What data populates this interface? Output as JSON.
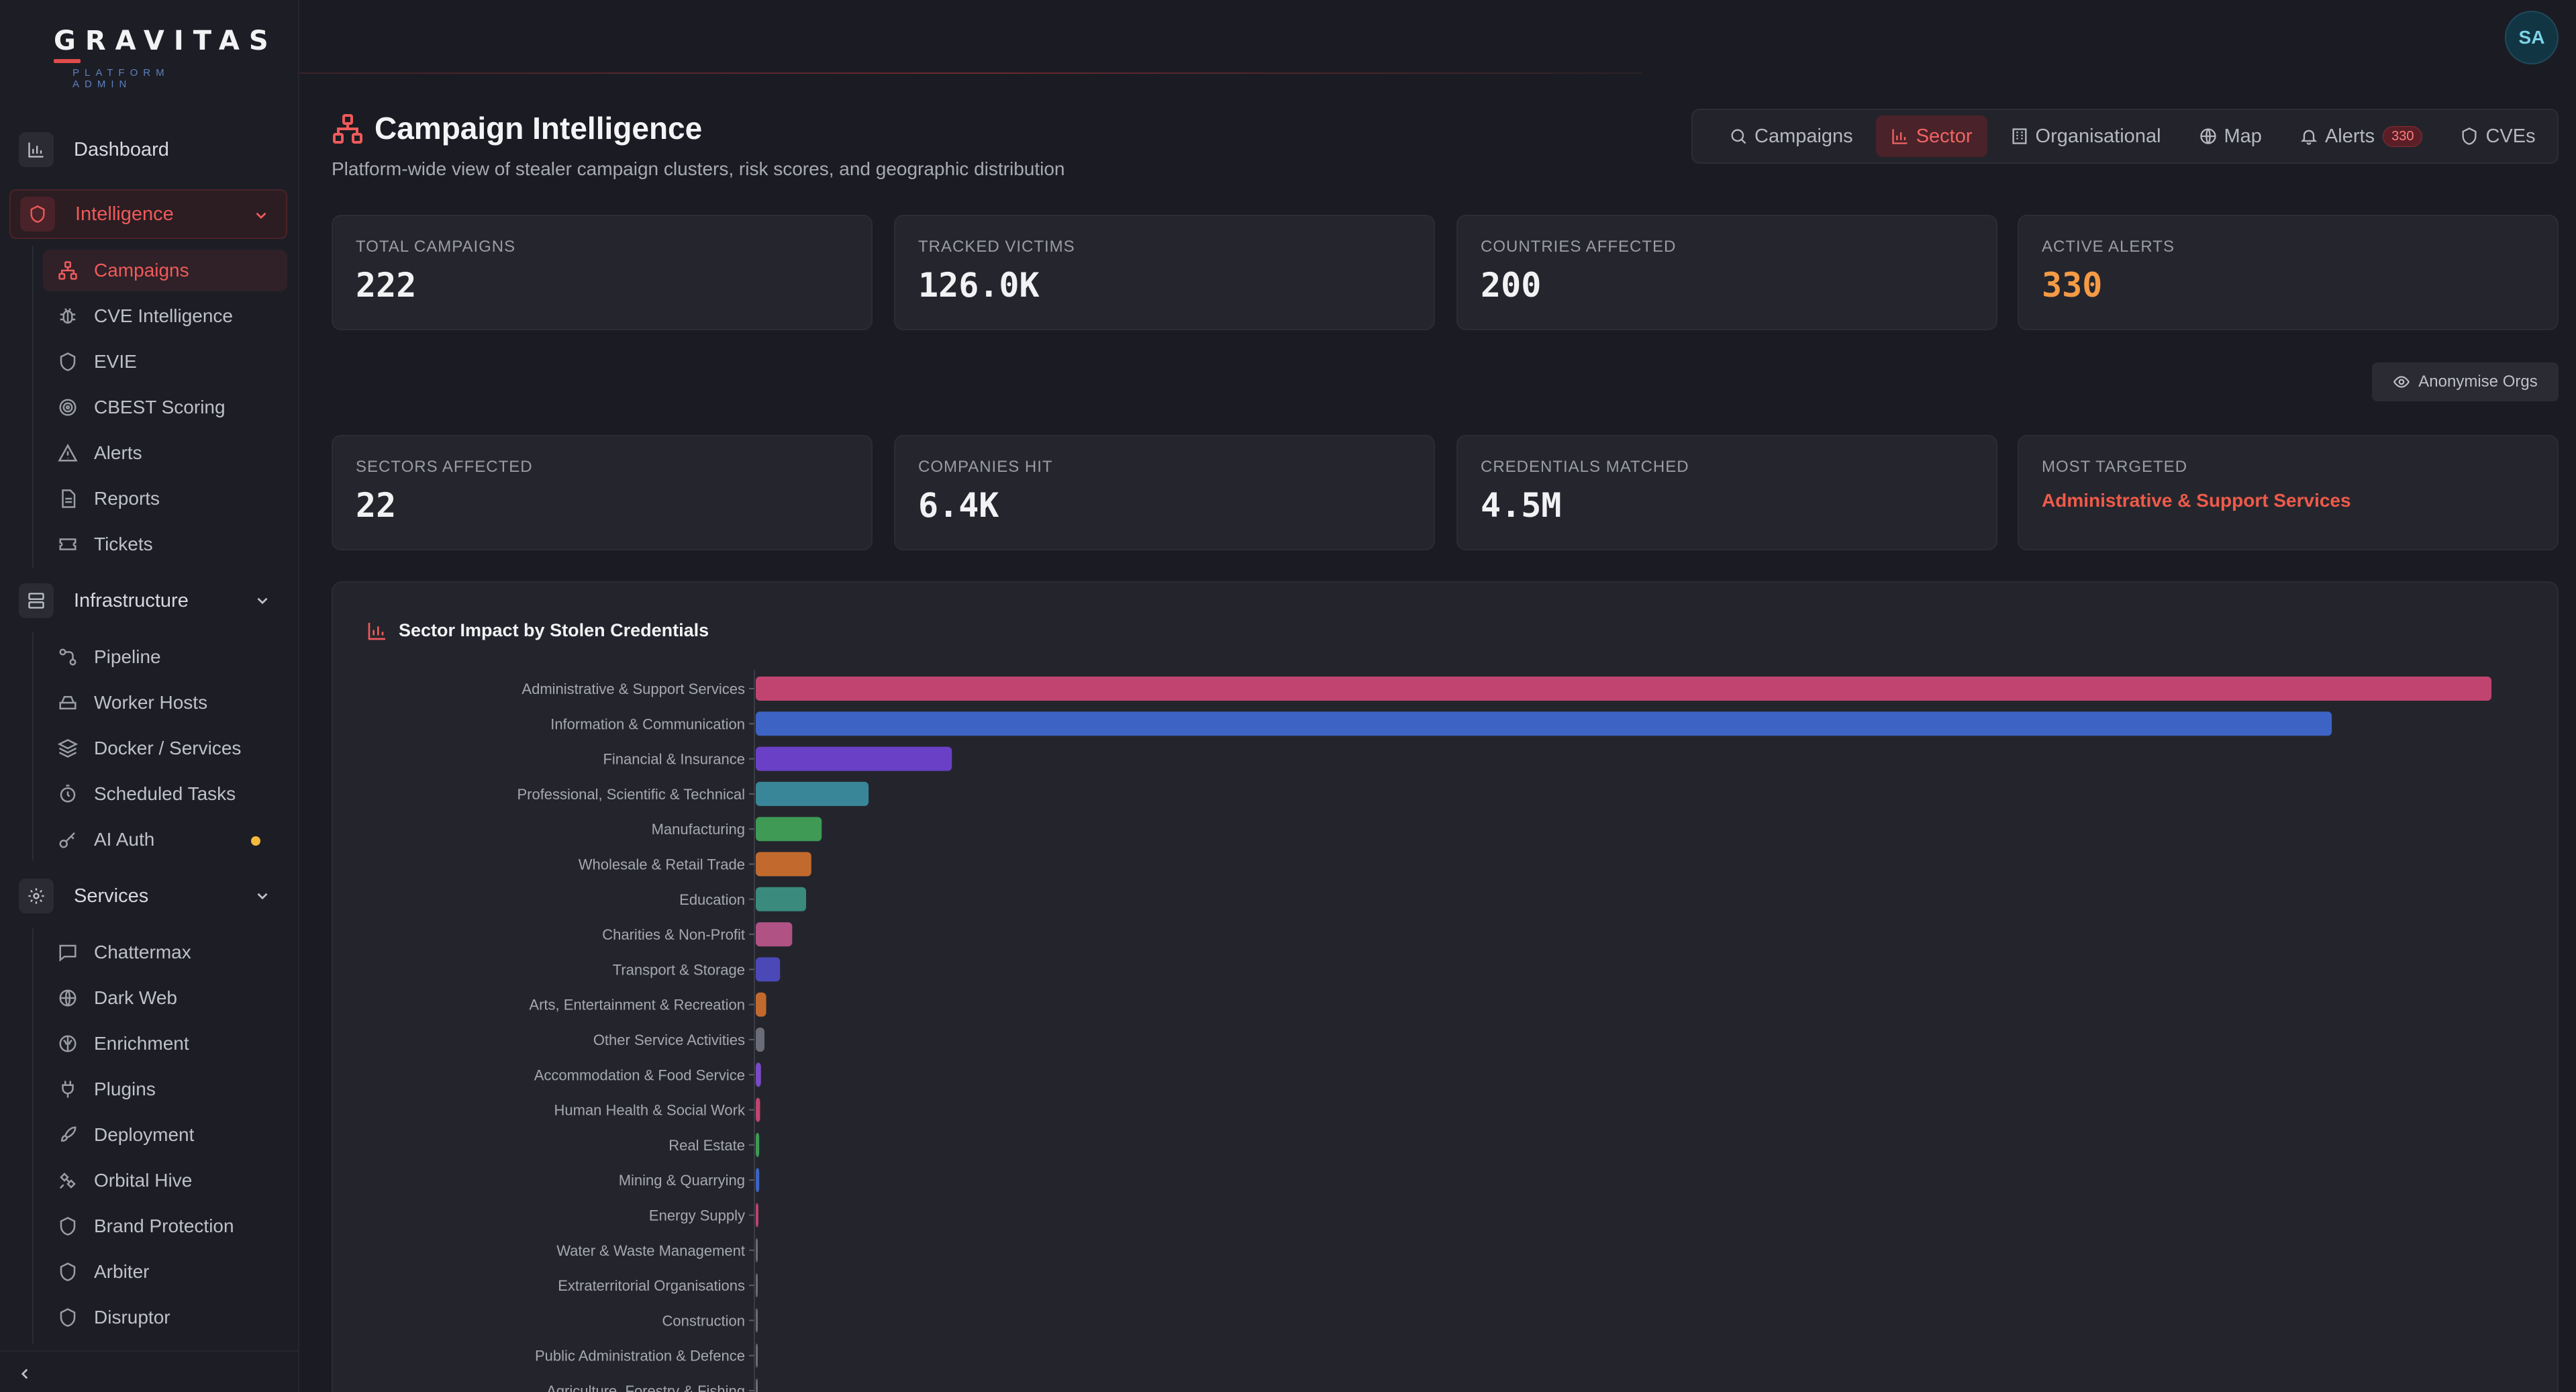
{
  "brand": {
    "name": "GRAVITAS",
    "subtitle": "PLATFORM ADMIN"
  },
  "user": {
    "initials": "SA"
  },
  "sidebar": {
    "dashboard": "Dashboard",
    "intelligence": {
      "label": "Intelligence",
      "items": [
        "Campaigns",
        "CVE Intelligence",
        "EVIE",
        "CBEST Scoring",
        "Alerts",
        "Reports",
        "Tickets"
      ]
    },
    "infrastructure": {
      "label": "Infrastructure",
      "items": [
        "Pipeline",
        "Worker Hosts",
        "Docker / Services",
        "Scheduled Tasks",
        "AI Auth"
      ]
    },
    "services": {
      "label": "Services",
      "items": [
        "Chattermax",
        "Dark Web",
        "Enrichment",
        "Plugins",
        "Deployment",
        "Orbital Hive",
        "Brand Protection",
        "Arbiter",
        "Disruptor"
      ]
    }
  },
  "header": {
    "title": "Campaign Intelligence",
    "subtitle": "Platform-wide view of stealer campaign clusters, risk scores, and geographic distribution"
  },
  "tabs": [
    {
      "label": "Campaigns",
      "icon": "search-icon"
    },
    {
      "label": "Sector",
      "icon": "bar-chart-icon"
    },
    {
      "label": "Organisational",
      "icon": "building-icon"
    },
    {
      "label": "Map",
      "icon": "globe-icon"
    },
    {
      "label": "Alerts",
      "icon": "bell-icon",
      "badge": "330"
    },
    {
      "label": "CVEs",
      "icon": "shield-icon"
    }
  ],
  "stats_row1": [
    {
      "label": "TOTAL CAMPAIGNS",
      "value": "222"
    },
    {
      "label": "TRACKED VICTIMS",
      "value": "126.0K"
    },
    {
      "label": "COUNTRIES AFFECTED",
      "value": "200"
    },
    {
      "label": "ACTIVE ALERTS",
      "value": "330"
    }
  ],
  "anonymise_label": "Anonymise Orgs",
  "stats_row2": [
    {
      "label": "SECTORS AFFECTED",
      "value": "22"
    },
    {
      "label": "COMPANIES HIT",
      "value": "6.4K"
    },
    {
      "label": "CREDENTIALS MATCHED",
      "value": "4.5M"
    },
    {
      "label": "MOST TARGETED",
      "value": "Administrative & Support Services"
    }
  ],
  "colors": {
    "accent": "#ef5a5a",
    "alert": "#f59a45",
    "background": "#1b1c23"
  },
  "chart_data": {
    "type": "bar",
    "orientation": "horizontal",
    "title": "Sector Impact by Stolen Credentials",
    "categories": [
      "Administrative & Support Services",
      "Information & Communication",
      "Financial & Insurance",
      "Professional, Scientific & Technical",
      "Manufacturing",
      "Wholesale & Retail Trade",
      "Education",
      "Charities & Non-Profit",
      "Transport & Storage",
      "Arts, Entertainment & Recreation",
      "Other Service Activities",
      "Accommodation & Food Service",
      "Human Health & Social Work",
      "Real Estate",
      "Mining & Quarrying",
      "Energy Supply",
      "Water & Waste Management",
      "Extraterritorial Organisations",
      "Construction",
      "Public Administration & Defence",
      "Agriculture, Forestry & Fishing"
    ],
    "values": [
      100,
      90.8,
      11.3,
      6.5,
      3.8,
      3.2,
      2.9,
      2.1,
      1.4,
      0.6,
      0.5,
      0.3,
      0.25,
      0.2,
      0.2,
      0.15,
      0.1,
      0.1,
      0.1,
      0.1,
      0.05
    ],
    "bar_colors": [
      "#c0446f",
      "#3d64c4",
      "#6a40c6",
      "#3a8699",
      "#3e9a55",
      "#c26a2e",
      "#3a8a7e",
      "#b05283",
      "#4b49b8",
      "#c26a2e",
      "#6a6c78",
      "#7a4ac6",
      "#c0446f",
      "#3e9a55",
      "#3d64c4",
      "#c0446f",
      "#6a6c78",
      "#6a6c78",
      "#6a6c78",
      "#6a6c78",
      "#6a6c78"
    ],
    "grid": false
  }
}
